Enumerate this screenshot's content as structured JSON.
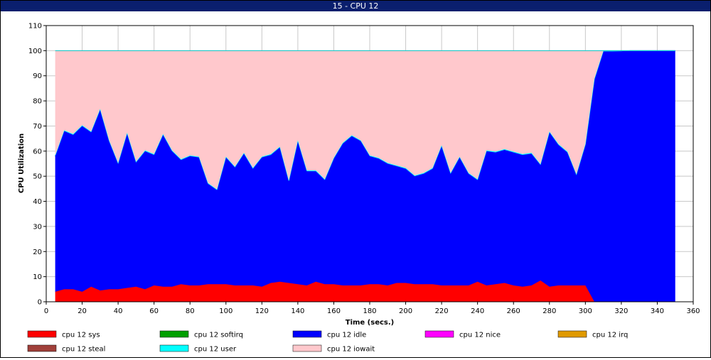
{
  "window": {
    "title": "15 - CPU 12"
  },
  "chart_data": {
    "type": "area",
    "stacked": true,
    "xlabel": "Time (secs.)",
    "ylabel": "CPU Utilization",
    "xlim": [
      0,
      360
    ],
    "ylim": [
      0,
      110
    ],
    "xticks": [
      0,
      20,
      40,
      60,
      80,
      100,
      120,
      140,
      160,
      180,
      200,
      220,
      240,
      260,
      280,
      300,
      320,
      340,
      360
    ],
    "yticks": [
      0,
      10,
      20,
      30,
      40,
      50,
      60,
      70,
      80,
      90,
      100,
      110
    ],
    "grid": true,
    "legend_position": "bottom",
    "x": [
      5,
      10,
      15,
      20,
      25,
      30,
      35,
      40,
      45,
      50,
      55,
      60,
      65,
      70,
      75,
      80,
      85,
      90,
      95,
      100,
      105,
      110,
      115,
      120,
      125,
      130,
      135,
      140,
      145,
      150,
      155,
      160,
      165,
      170,
      175,
      180,
      185,
      190,
      195,
      200,
      205,
      210,
      215,
      220,
      225,
      230,
      235,
      240,
      245,
      250,
      255,
      260,
      265,
      270,
      275,
      280,
      285,
      290,
      295,
      300,
      305,
      310,
      315,
      320,
      325,
      330,
      335,
      340,
      345,
      350
    ],
    "series": [
      {
        "name": "cpu 12 sys",
        "color": "#ff0000",
        "values": [
          4,
          5,
          5,
          4,
          6,
          4.5,
          5,
          5,
          5.5,
          6,
          5,
          6.5,
          6,
          6,
          7,
          6.5,
          6.5,
          7,
          7,
          7,
          6.5,
          6.5,
          6.5,
          6,
          7.5,
          8,
          7.5,
          7,
          6.5,
          8,
          7,
          7,
          6.5,
          6.5,
          6.5,
          7,
          7,
          6.5,
          7.5,
          7.5,
          7,
          7,
          7,
          6.5,
          6.5,
          6.5,
          6.5,
          8,
          6.5,
          7,
          7.5,
          6.5,
          6,
          6.5,
          8.5,
          6,
          6.5,
          6.5,
          6.5,
          6.5,
          0,
          0,
          0,
          0,
          0,
          0,
          0,
          0,
          0,
          0
        ]
      },
      {
        "name": "cpu 12 softirq",
        "color": "#00a000",
        "values": [
          0,
          0,
          0,
          0,
          0,
          0,
          0,
          0,
          0,
          0,
          0,
          0,
          0,
          0,
          0,
          0,
          0,
          0,
          0,
          0,
          0,
          0,
          0,
          0,
          0,
          0,
          0,
          0,
          0,
          0,
          0,
          0,
          0,
          0,
          0,
          0,
          0,
          0,
          0,
          0,
          0,
          0,
          0,
          0,
          0,
          0,
          0,
          0,
          0,
          0,
          0,
          0,
          0,
          0,
          0,
          0,
          0,
          0,
          0,
          0,
          0,
          0,
          0,
          0,
          0,
          0,
          0,
          0,
          0,
          0
        ]
      },
      {
        "name": "cpu 12 idle",
        "color": "#0000ff",
        "values": [
          54,
          63,
          61.5,
          66,
          61.5,
          72,
          59,
          50,
          61.5,
          49.5,
          55,
          52,
          60.5,
          54,
          49.5,
          51.5,
          51,
          40,
          37.5,
          50.5,
          47,
          52.5,
          46.5,
          51.5,
          51,
          53.5,
          40.5,
          57,
          45.5,
          44,
          41.5,
          50,
          56.5,
          59.5,
          57.5,
          51,
          50,
          48.5,
          46.5,
          45.5,
          43,
          44,
          46,
          55.5,
          44.5,
          51,
          44.5,
          40.5,
          53.5,
          52.5,
          53,
          53,
          52.5,
          52.5,
          46,
          61.5,
          56,
          53,
          44,
          56,
          88.5,
          99.7,
          99.7,
          99.8,
          100,
          100,
          100,
          100,
          100,
          100
        ]
      },
      {
        "name": "cpu 12 nice",
        "color": "#ff00ff",
        "values": [
          0,
          0,
          0,
          0,
          0,
          0,
          0,
          0,
          0,
          0,
          0,
          0,
          0,
          0,
          0,
          0,
          0,
          0,
          0,
          0,
          0,
          0,
          0,
          0,
          0,
          0,
          0,
          0,
          0,
          0,
          0,
          0,
          0,
          0,
          0,
          0,
          0,
          0,
          0,
          0,
          0,
          0,
          0,
          0,
          0,
          0,
          0,
          0,
          0,
          0,
          0,
          0,
          0,
          0,
          0,
          0,
          0,
          0,
          0,
          0,
          0,
          0,
          0,
          0,
          0,
          0,
          0,
          0,
          0,
          0
        ]
      },
      {
        "name": "cpu 12 irq",
        "color": "#e09a00",
        "values": [
          0,
          0,
          0,
          0,
          0,
          0,
          0,
          0,
          0,
          0,
          0,
          0,
          0,
          0,
          0,
          0,
          0,
          0,
          0,
          0,
          0,
          0,
          0,
          0,
          0,
          0,
          0,
          0,
          0,
          0,
          0,
          0,
          0,
          0,
          0,
          0,
          0,
          0,
          0,
          0,
          0,
          0,
          0,
          0,
          0,
          0,
          0,
          0,
          0,
          0,
          0,
          0,
          0,
          0,
          0,
          0,
          0,
          0,
          0,
          0,
          0,
          0,
          0,
          0,
          0,
          0,
          0,
          0,
          0,
          0
        ]
      },
      {
        "name": "cpu 12 steal",
        "color": "#a0403a",
        "values": [
          0,
          0,
          0,
          0,
          0,
          0,
          0,
          0,
          0,
          0,
          0,
          0,
          0,
          0,
          0,
          0,
          0,
          0,
          0,
          0,
          0,
          0,
          0,
          0,
          0,
          0,
          0,
          0,
          0,
          0,
          0,
          0,
          0,
          0,
          0,
          0,
          0,
          0,
          0,
          0,
          0,
          0,
          0,
          0,
          0,
          0,
          0,
          0,
          0,
          0,
          0,
          0,
          0,
          0,
          0,
          0,
          0,
          0,
          0,
          0,
          0,
          0,
          0,
          0,
          0,
          0,
          0,
          0,
          0,
          0
        ]
      },
      {
        "name": "cpu 12 user",
        "color": "#00ffff",
        "values": [
          0.3,
          0.3,
          0.3,
          0.3,
          0.3,
          0.3,
          0.3,
          0.3,
          0.3,
          0.3,
          0.3,
          0.3,
          0.3,
          0.3,
          0.3,
          0.3,
          0.3,
          0.3,
          0.3,
          0.3,
          0.3,
          0.3,
          0.3,
          0.3,
          0.3,
          0.3,
          0.3,
          0.3,
          0.3,
          0.3,
          0.3,
          0.3,
          0.3,
          0.3,
          0.3,
          0.3,
          0.3,
          0.3,
          0.3,
          0.3,
          0.3,
          0.3,
          0.3,
          0.3,
          0.3,
          0.3,
          0.3,
          0.3,
          0.3,
          0.3,
          0.3,
          0.3,
          0.3,
          0.3,
          0.3,
          0.3,
          0.3,
          0.3,
          0.3,
          0.3,
          0.3,
          0.3,
          0.3,
          0.2,
          0,
          0,
          0,
          0,
          0,
          0
        ]
      },
      {
        "name": "cpu 12 iowait",
        "color": "#ffc8cc",
        "values": [
          41.7,
          31.7,
          33.2,
          29.7,
          32.2,
          23.2,
          35.7,
          44.7,
          32.7,
          44.2,
          39.7,
          41.2,
          33.2,
          39.7,
          43.2,
          41.7,
          42.2,
          52.7,
          55.2,
          42.2,
          46.2,
          40.7,
          46.7,
          42.2,
          41.2,
          38.2,
          51.7,
          35.7,
          47.7,
          47.7,
          51.2,
          42.7,
          36.7,
          33.7,
          35.7,
          41.7,
          42.7,
          44.7,
          45.7,
          46.7,
          49.7,
          48.7,
          46.7,
          37.7,
          48.7,
          42.2,
          48.7,
          51.2,
          39.7,
          40.2,
          39.2,
          40.2,
          41.2,
          40.7,
          45.2,
          32.2,
          37.2,
          40.2,
          49.2,
          37.2,
          11.2,
          0,
          0,
          0,
          0,
          0,
          0,
          0,
          0,
          0
        ]
      }
    ]
  }
}
